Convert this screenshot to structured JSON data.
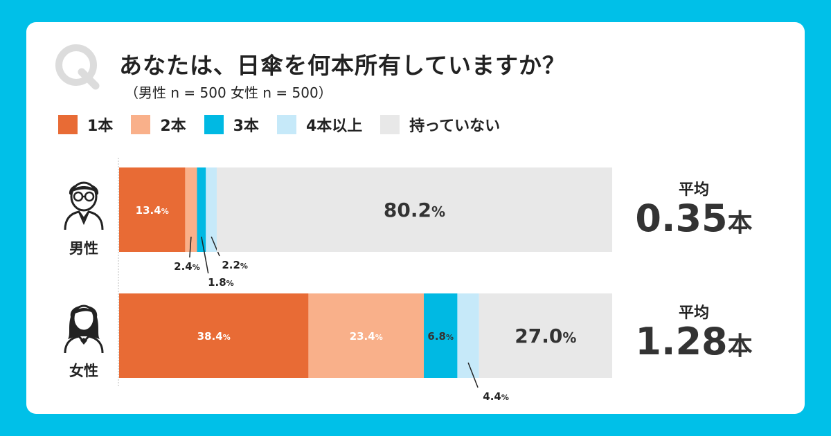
{
  "question": {
    "mark": "Q",
    "title": "あなたは、日傘を何本所有していますか？",
    "subtitle": "（男性 n = 500 女性 n = 500）"
  },
  "legend": [
    {
      "label": "1本",
      "color": "#e86b35"
    },
    {
      "label": "2本",
      "color": "#f9b08a"
    },
    {
      "label": "3本",
      "color": "#00b9e3"
    },
    {
      "label": "4本以上",
      "color": "#c6e9f9"
    },
    {
      "label": "持っていない",
      "color": "#e8e8e8"
    }
  ],
  "groups": [
    {
      "label": "男性",
      "icon": "male-person-icon",
      "average_label": "平均",
      "average_value": "0.35",
      "average_unit": "本"
    },
    {
      "label": "女性",
      "icon": "female-person-icon",
      "average_label": "平均",
      "average_value": "1.28",
      "average_unit": "本"
    }
  ],
  "chart_data": {
    "type": "bar",
    "orientation": "horizontal",
    "stacked": true,
    "percent_sign": "%",
    "categories": [
      "男性",
      "女性"
    ],
    "series": [
      {
        "name": "1本",
        "color": "#e86b35",
        "values": [
          13.4,
          38.4
        ],
        "value_labels": [
          "13.4",
          "38.4"
        ]
      },
      {
        "name": "2本",
        "color": "#f9b08a",
        "values": [
          2.4,
          23.4
        ],
        "value_labels": [
          "2.4",
          "23.4"
        ]
      },
      {
        "name": "3本",
        "color": "#00b9e3",
        "values": [
          1.8,
          6.8
        ],
        "value_labels": [
          "1.8",
          "6.8"
        ]
      },
      {
        "name": "4本以上",
        "color": "#c6e9f9",
        "values": [
          2.2,
          4.4
        ],
        "value_labels": [
          "2.2",
          "4.4"
        ]
      },
      {
        "name": "持っていない",
        "color": "#e8e8e8",
        "values": [
          80.2,
          27.0
        ],
        "value_labels": [
          "80.2",
          "27.0"
        ]
      }
    ],
    "xlim": [
      0,
      100
    ],
    "unit": "%"
  }
}
